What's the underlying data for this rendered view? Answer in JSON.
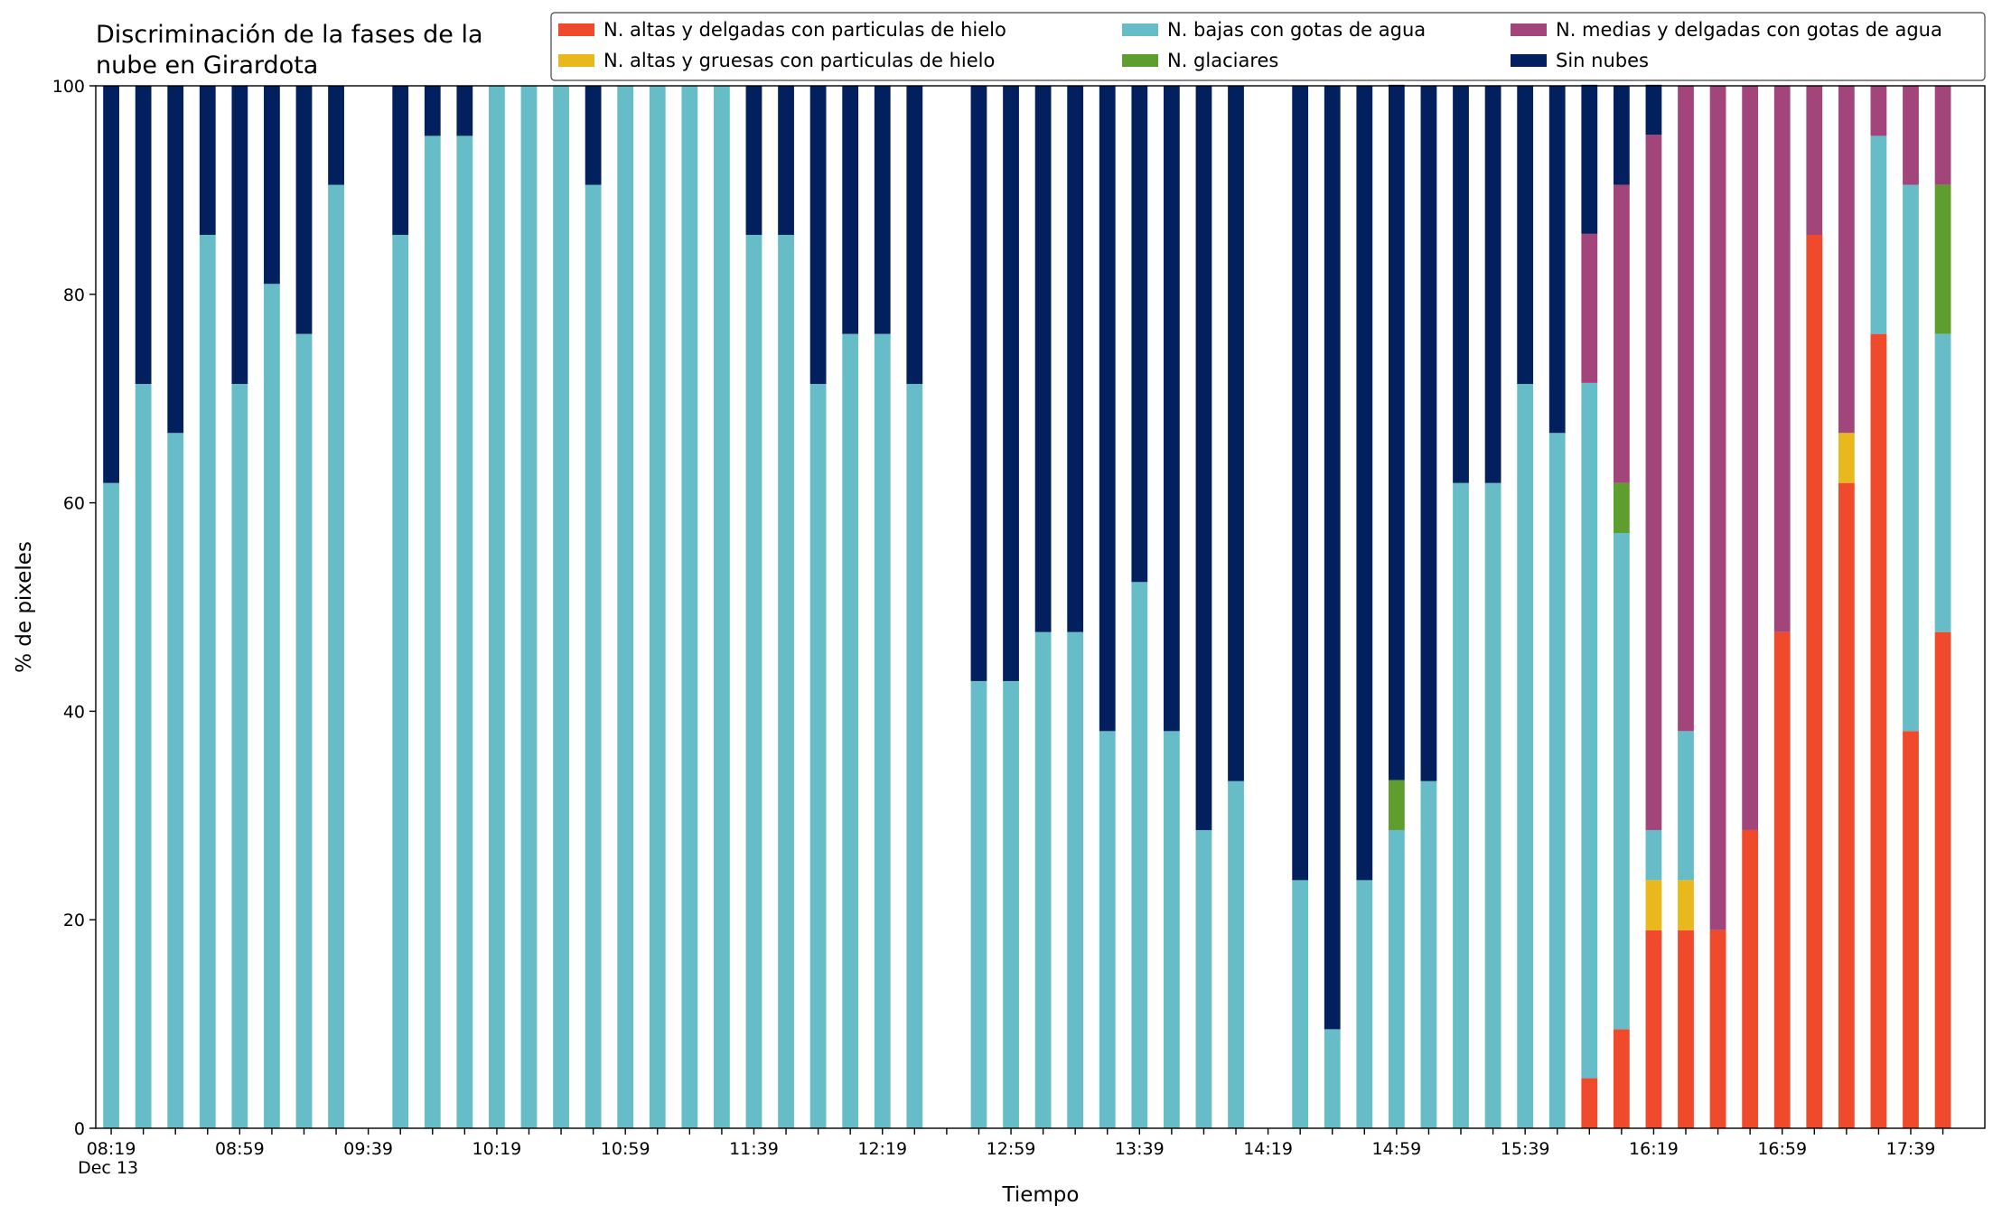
{
  "chart_data": {
    "type": "stacked_bar",
    "title": "Discriminación de la fases de la\nnube en Girardota",
    "xlabel": "Tiempo",
    "ylabel": "% de pixeles",
    "x_sublabel": "Dec 13",
    "categories": [
      "08:19",
      null,
      null,
      null,
      "08:59",
      null,
      null,
      null,
      "09:39",
      null,
      null,
      null,
      "10:19",
      null,
      null,
      null,
      "10:59",
      null,
      null,
      null,
      "11:39",
      null,
      null,
      null,
      "12:19",
      null,
      null,
      null,
      "12:59",
      null,
      null,
      null,
      "13:39",
      null,
      null,
      null,
      "14:19",
      null,
      null,
      null,
      "14:59",
      null,
      null,
      null,
      "15:39",
      null,
      null,
      null,
      "16:19",
      null,
      null,
      null,
      "16:59",
      null,
      null,
      null,
      "17:39",
      null
    ],
    "ylim": [
      0,
      100
    ],
    "yticks": [
      0,
      20,
      40,
      60,
      80,
      100
    ],
    "legend": "top-right",
    "series": [
      {
        "name": "N. altas y delgadas con particulas de hielo",
        "color": "#ee4a2b",
        "values": [
          0,
          0,
          0,
          0,
          0,
          0,
          0,
          0,
          null,
          0,
          0,
          0,
          0,
          0,
          0,
          0,
          0,
          0,
          0,
          0,
          0,
          0,
          0,
          0,
          0,
          0,
          null,
          0,
          0,
          0,
          0,
          0,
          0,
          0,
          0,
          0,
          null,
          0,
          0,
          0,
          0,
          0,
          0,
          0,
          0,
          0,
          4.8,
          9.5,
          19.0,
          19.0,
          19.0,
          28.6,
          47.6,
          85.7,
          61.9,
          76.2,
          38.1,
          47.6
        ]
      },
      {
        "name": "N. altas y gruesas con particulas de hielo",
        "color": "#e8b81c",
        "values": [
          0,
          0,
          0,
          0,
          0,
          0,
          0,
          0,
          null,
          0,
          0,
          0,
          0,
          0,
          0,
          0,
          0,
          0,
          0,
          0,
          0,
          0,
          0,
          0,
          0,
          0,
          null,
          0,
          0,
          0,
          0,
          0,
          0,
          0,
          0,
          0,
          null,
          0,
          0,
          0,
          0,
          0,
          0,
          0,
          0,
          0,
          0,
          0,
          4.8,
          4.8,
          0,
          0,
          0,
          0,
          4.8,
          0,
          0,
          0
        ]
      },
      {
        "name": "N. bajas con gotas de agua",
        "color": "#66bdc8",
        "values": [
          61.9,
          71.4,
          66.7,
          85.7,
          71.4,
          81.0,
          76.2,
          90.5,
          null,
          85.7,
          95.2,
          95.2,
          100,
          100,
          100,
          90.5,
          100,
          100,
          100,
          100,
          85.7,
          85.7,
          71.4,
          76.2,
          76.2,
          71.4,
          null,
          42.9,
          42.9,
          47.6,
          47.6,
          38.1,
          52.4,
          38.1,
          28.6,
          33.3,
          null,
          23.8,
          9.5,
          23.8,
          28.6,
          33.3,
          61.9,
          61.9,
          71.4,
          66.7,
          66.7,
          47.6,
          4.8,
          14.3,
          0,
          0,
          0,
          0,
          0,
          19.0,
          52.4,
          28.6
        ]
      },
      {
        "name": "N. glaciares",
        "color": "#5e9e2e",
        "values": [
          0,
          0,
          0,
          0,
          0,
          0,
          0,
          0,
          null,
          0,
          0,
          0,
          0,
          0,
          0,
          0,
          0,
          0,
          0,
          0,
          0,
          0,
          0,
          0,
          0,
          0,
          null,
          0,
          0,
          0,
          0,
          0,
          0,
          0,
          0,
          0,
          null,
          0,
          0,
          0,
          4.8,
          0,
          0,
          0,
          0,
          0,
          0,
          4.8,
          0,
          0,
          0,
          0,
          0,
          0,
          0,
          0,
          0,
          14.3
        ]
      },
      {
        "name": "N. medias y delgadas con gotas de agua",
        "color": "#a2457a",
        "values": [
          0,
          0,
          0,
          0,
          0,
          0,
          0,
          0,
          null,
          0,
          0,
          0,
          0,
          0,
          0,
          0,
          0,
          0,
          0,
          0,
          0,
          0,
          0,
          0,
          0,
          0,
          null,
          0,
          0,
          0,
          0,
          0,
          0,
          0,
          0,
          0,
          null,
          0,
          0,
          0,
          0,
          0,
          0,
          0,
          0,
          0,
          14.3,
          28.6,
          66.7,
          61.9,
          81.0,
          71.4,
          52.4,
          14.3,
          33.3,
          4.8,
          9.5,
          9.5
        ]
      },
      {
        "name": "Sin nubes",
        "color": "#03205e",
        "values": [
          38.1,
          28.6,
          33.3,
          14.3,
          28.6,
          19.0,
          23.8,
          9.5,
          null,
          14.3,
          4.8,
          4.8,
          0,
          0,
          0,
          9.5,
          0,
          0,
          0,
          0,
          14.3,
          14.3,
          28.6,
          23.8,
          23.8,
          28.6,
          null,
          57.1,
          57.1,
          52.4,
          52.4,
          61.9,
          47.6,
          61.9,
          71.4,
          66.7,
          null,
          76.2,
          90.5,
          76.2,
          66.7,
          66.7,
          38.1,
          38.1,
          28.6,
          33.3,
          14.3,
          9.5,
          4.8,
          0,
          0,
          0,
          0,
          0,
          0,
          0,
          0,
          0
        ]
      }
    ]
  }
}
